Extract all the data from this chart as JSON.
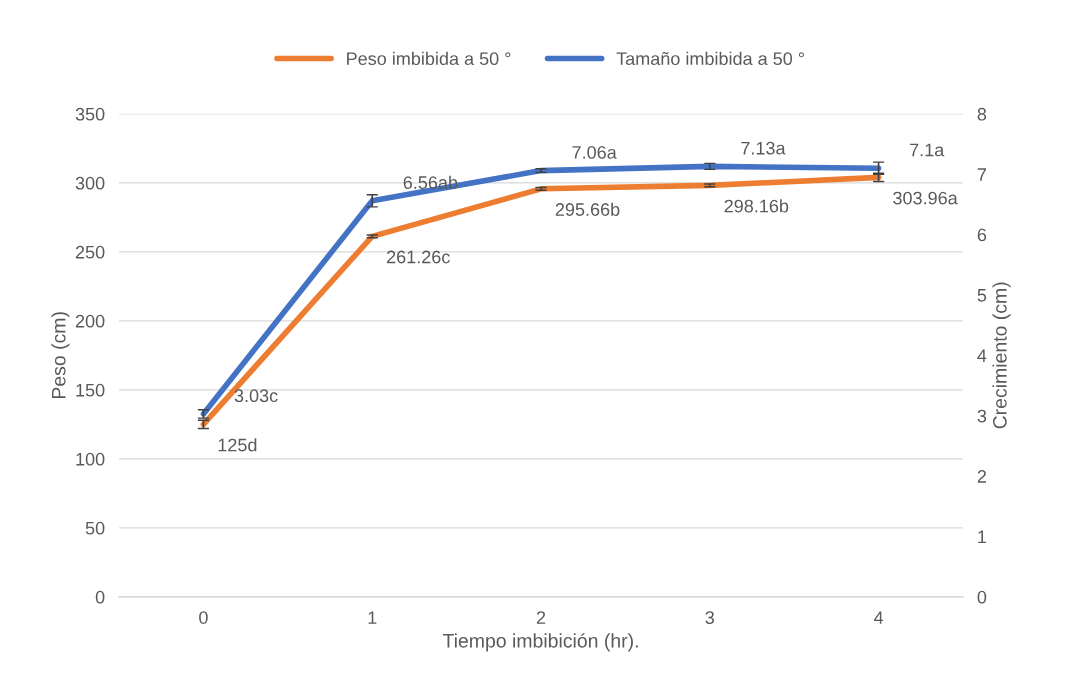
{
  "chart_data": {
    "type": "line",
    "xlabel": "Tiempo imbibición (hr).",
    "ylabel": "Peso (cm)",
    "y2label": "Crecimiento (cm)",
    "categories": [
      "0",
      "1",
      "2",
      "3",
      "4"
    ],
    "series": [
      {
        "name": "Peso imbibida a 50 °",
        "color": "#ed7d31",
        "values": [
          125,
          261.26,
          295.66,
          298.16,
          303.96
        ],
        "errors": [
          3,
          1,
          1,
          1,
          3
        ],
        "value_labels": [
          "125d",
          "261.26c",
          "295.66b",
          "298.16b",
          "303.96a"
        ]
      },
      {
        "name": "Tamaño imbibida a 50 °",
        "color": "#4472c4",
        "axis": "y2",
        "values": [
          3.03,
          6.56,
          7.06,
          7.13,
          7.1
        ],
        "errors": [
          0.07,
          0.1,
          0.03,
          0.05,
          0.1
        ],
        "value_labels": [
          "3.03c",
          "6.56ab",
          "7.06a",
          "7.13a",
          "7.1a"
        ]
      }
    ],
    "ylim": [
      0,
      350
    ],
    "yticks": [
      0,
      50,
      100,
      150,
      200,
      250,
      300,
      350
    ],
    "y2lim": [
      0,
      8
    ],
    "y2ticks": [
      0,
      1,
      2,
      3,
      4,
      5,
      6,
      7,
      8
    ],
    "grid": "y",
    "legend": "top",
    "marker": "none",
    "line_style": "solid"
  }
}
